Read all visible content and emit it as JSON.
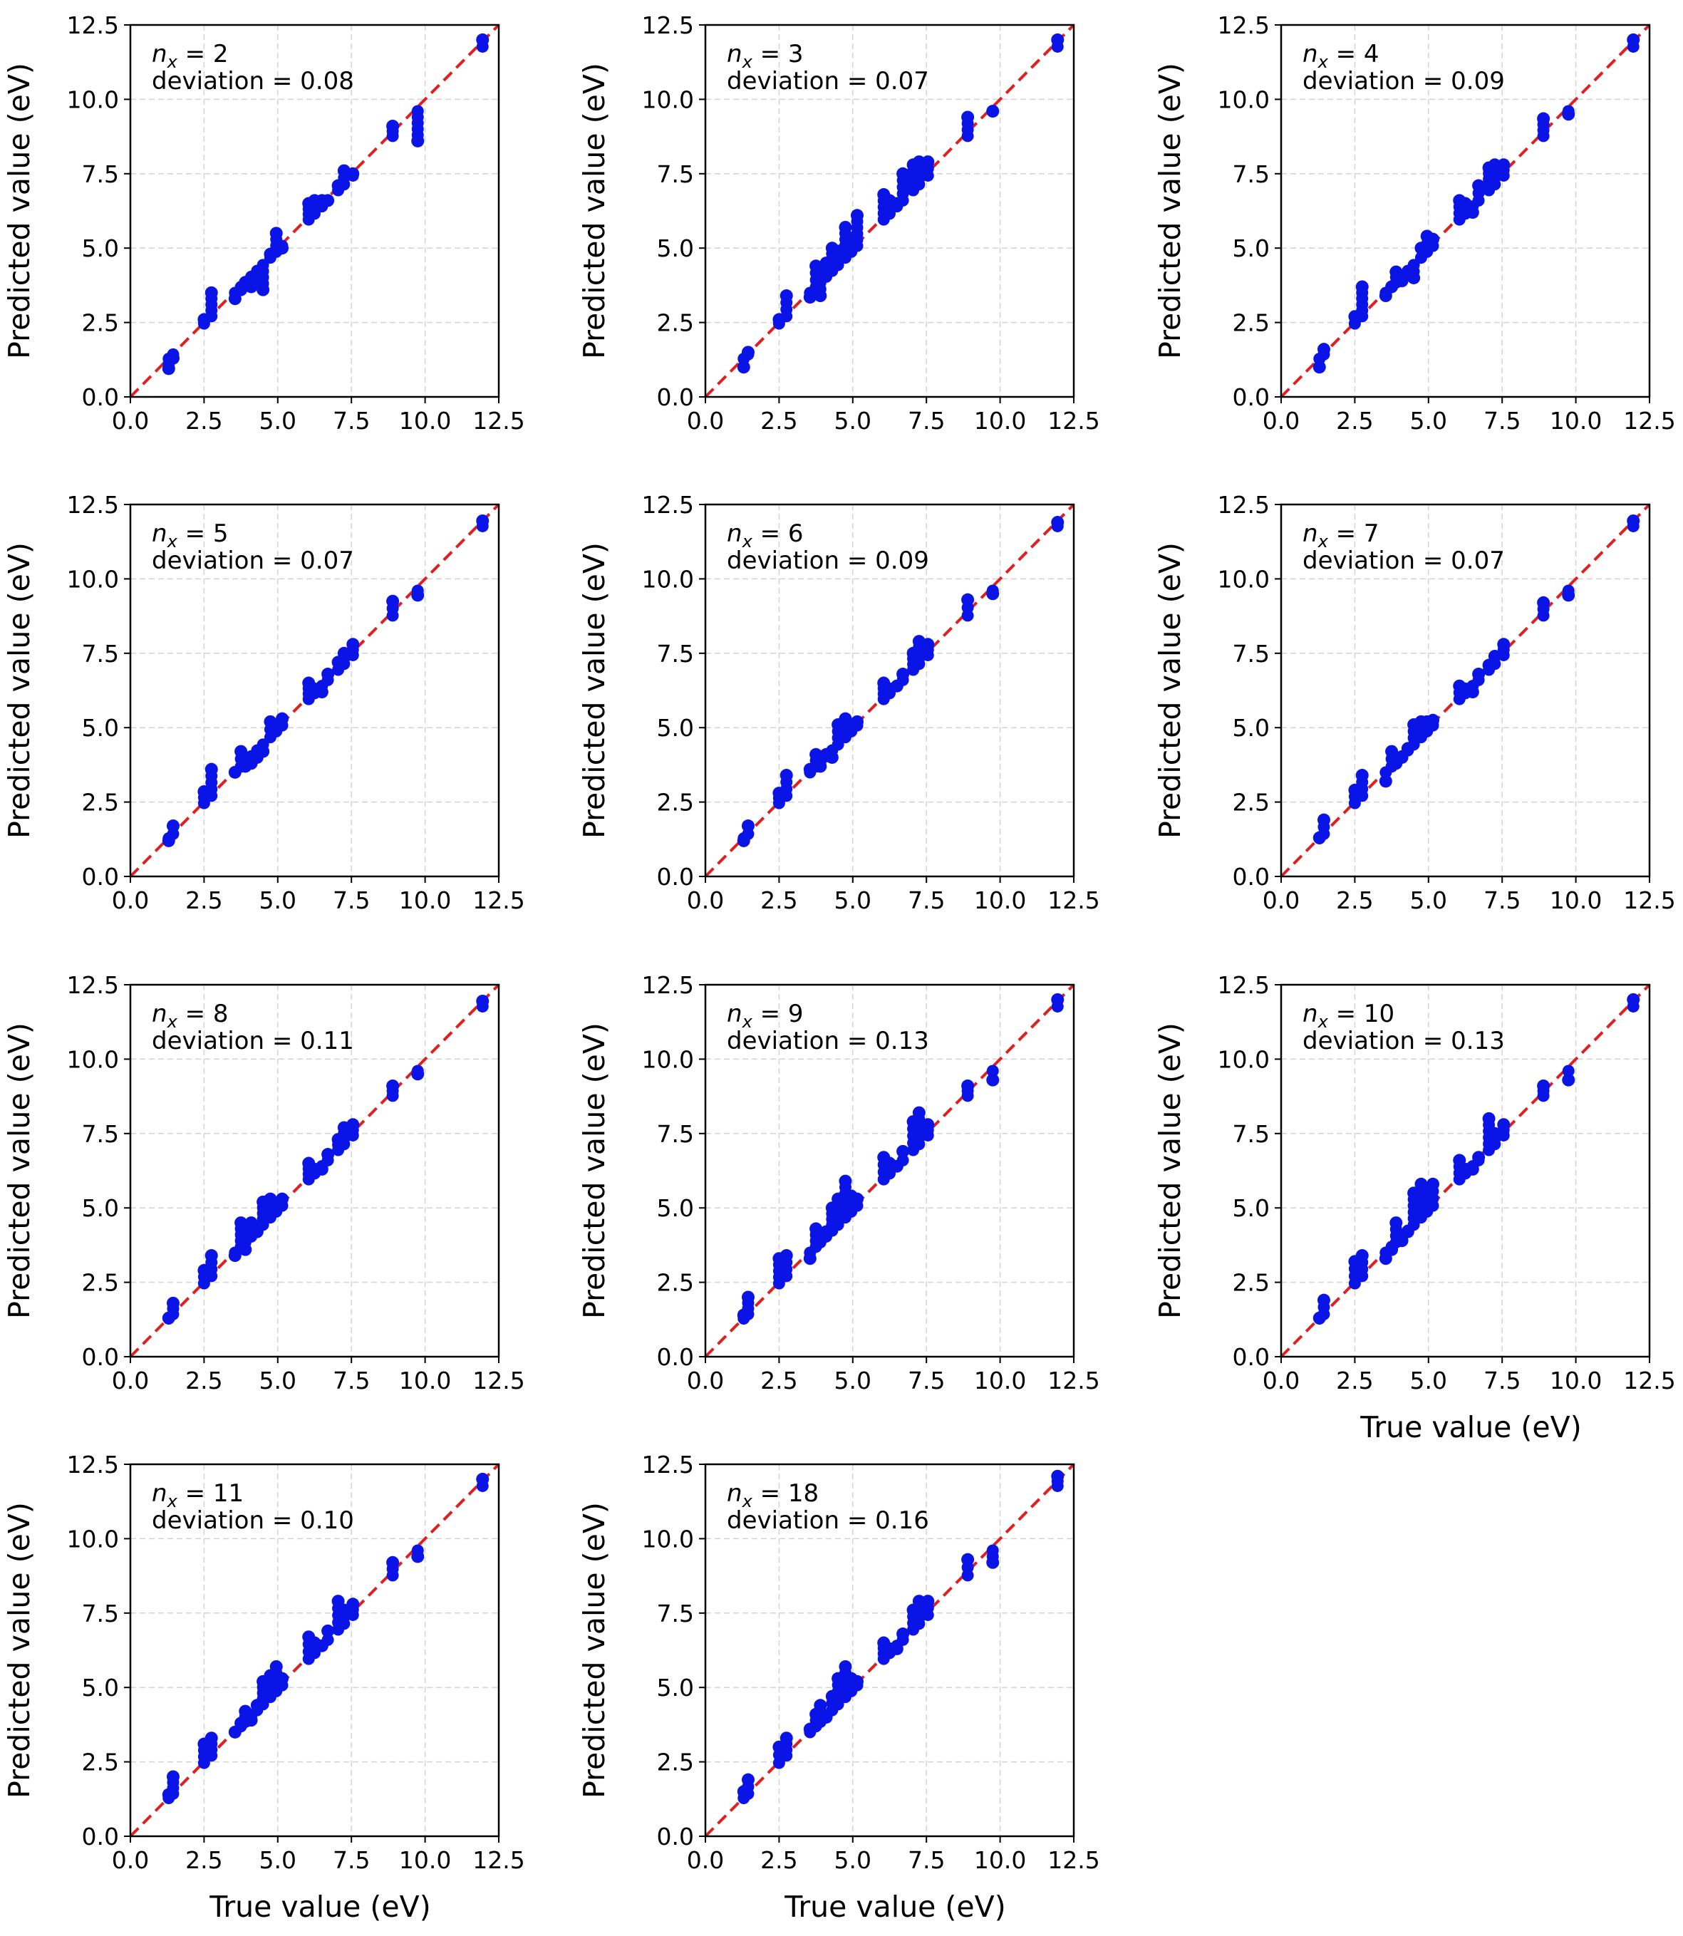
{
  "chart_data": {
    "type": "scatter",
    "layout": "grid-4x3",
    "axis": {
      "xlim": [
        0,
        12.5
      ],
      "ylim": [
        0,
        12.5
      ],
      "ticks": [
        0,
        2.5,
        5,
        7.5,
        10,
        12.5
      ],
      "tick_labels": [
        "0.0",
        "2.5",
        "5.0",
        "7.5",
        "10.0",
        "12.5"
      ],
      "xlabel": "True value (eV)",
      "ylabel": "Predicted value (eV)",
      "grid": true
    },
    "reference_line": {
      "style": "dashed",
      "color": "#e02020",
      "from": [
        0,
        0
      ],
      "to": [
        12.5,
        12.5
      ]
    },
    "marker_color": "#0a14e6",
    "true_values": [
      1.3,
      1.45,
      2.5,
      2.75,
      3.55,
      3.75,
      3.9,
      4.1,
      4.3,
      4.5,
      4.75,
      4.95,
      5.15,
      6.05,
      6.25,
      6.5,
      6.7,
      7.05,
      7.25,
      7.55,
      8.9,
      9.75,
      11.95
    ],
    "panels": [
      {
        "id": "nx2",
        "nx": "2",
        "deviation_text": "deviation = 0.08",
        "show_xlabel": false,
        "pred": [
          0.95,
          1.3,
          2.6,
          3.5,
          3.3,
          3.6,
          3.85,
          3.7,
          4.0,
          3.6,
          4.8,
          5.5,
          5.0,
          6.5,
          6.6,
          6.6,
          6.6,
          7.1,
          7.6,
          7.5,
          9.1,
          8.6,
          12.0
        ]
      },
      {
        "id": "nx3",
        "nx": "3",
        "deviation_text": "deviation = 0.07",
        "show_xlabel": false,
        "pred": [
          1.0,
          1.5,
          2.6,
          3.4,
          3.35,
          4.4,
          3.4,
          4.5,
          5.0,
          4.9,
          5.7,
          5.3,
          6.1,
          6.8,
          6.6,
          6.5,
          7.5,
          7.8,
          7.9,
          7.9,
          9.4,
          9.6,
          12.0
        ]
      },
      {
        "id": "nx4",
        "nx": "4",
        "deviation_text": "deviation = 0.09",
        "show_xlabel": false,
        "pred": [
          1.0,
          1.6,
          2.7,
          3.7,
          3.4,
          3.7,
          4.2,
          3.9,
          4.2,
          4.0,
          5.0,
          5.4,
          5.3,
          6.6,
          6.5,
          6.2,
          7.1,
          7.7,
          7.8,
          7.8,
          9.35,
          9.5,
          12.0
        ]
      },
      {
        "id": "nx5",
        "nx": "5",
        "deviation_text": "deviation = 0.07",
        "show_xlabel": false,
        "pred": [
          1.2,
          1.7,
          2.85,
          3.6,
          3.5,
          4.2,
          3.7,
          3.8,
          4.0,
          4.2,
          5.2,
          5.1,
          5.3,
          6.5,
          6.3,
          6.2,
          6.8,
          7.2,
          7.5,
          7.8,
          9.25,
          9.45,
          11.95
        ]
      },
      {
        "id": "nx6",
        "nx": "6",
        "deviation_text": "deviation = 0.09",
        "show_xlabel": false,
        "pred": [
          1.2,
          1.7,
          2.8,
          3.4,
          3.6,
          4.1,
          3.7,
          4.1,
          4.0,
          5.1,
          5.3,
          5.0,
          5.2,
          6.5,
          6.3,
          6.4,
          6.8,
          7.5,
          7.9,
          7.8,
          9.3,
          9.5,
          11.9
        ]
      },
      {
        "id": "nx7",
        "nx": "7",
        "deviation_text": "deviation = 0.07",
        "show_xlabel": false,
        "pred": [
          1.3,
          1.9,
          2.9,
          3.4,
          3.2,
          4.2,
          3.8,
          4.0,
          4.3,
          5.1,
          5.2,
          5.2,
          5.25,
          6.4,
          6.3,
          6.2,
          6.8,
          7.1,
          7.4,
          7.8,
          9.2,
          9.45,
          11.95
        ]
      },
      {
        "id": "nx8",
        "nx": "8",
        "deviation_text": "deviation = 0.11",
        "show_xlabel": false,
        "pred": [
          1.3,
          1.8,
          2.9,
          3.4,
          3.4,
          4.5,
          3.6,
          4.5,
          4.2,
          5.2,
          5.3,
          5.1,
          5.3,
          6.5,
          6.3,
          6.3,
          6.8,
          7.3,
          7.7,
          7.8,
          9.1,
          9.5,
          11.95
        ]
      },
      {
        "id": "nx9",
        "nx": "9",
        "deviation_text": "deviation = 0.13",
        "show_xlabel": false,
        "pred": [
          1.4,
          2.0,
          3.3,
          3.4,
          3.3,
          4.3,
          3.9,
          4.2,
          5.0,
          5.3,
          5.9,
          5.4,
          5.3,
          6.7,
          6.5,
          6.4,
          6.9,
          7.9,
          8.2,
          7.8,
          9.1,
          9.3,
          12.0
        ]
      },
      {
        "id": "nx10",
        "nx": "10",
        "deviation_text": "deviation = 0.13",
        "show_xlabel": true,
        "pred": [
          1.3,
          1.9,
          3.2,
          3.4,
          3.3,
          3.6,
          4.5,
          3.9,
          4.2,
          5.5,
          5.8,
          5.5,
          5.8,
          6.6,
          6.3,
          6.3,
          6.7,
          8.0,
          7.5,
          7.8,
          9.1,
          9.3,
          12.0
        ]
      },
      {
        "id": "nx11",
        "nx": "11",
        "deviation_text": "deviation = 0.10",
        "show_xlabel": true,
        "pred": [
          1.4,
          2.0,
          3.1,
          3.3,
          3.5,
          3.8,
          4.2,
          3.9,
          4.4,
          5.2,
          5.4,
          5.7,
          5.3,
          6.7,
          6.5,
          6.4,
          6.9,
          7.9,
          7.6,
          7.8,
          9.2,
          9.4,
          12.0
        ]
      },
      {
        "id": "nx18",
        "nx": "18",
        "deviation_text": "deviation = 0.16",
        "show_xlabel": true,
        "pred": [
          1.5,
          1.9,
          3.0,
          3.3,
          3.6,
          4.1,
          4.4,
          4.0,
          4.7,
          5.3,
          5.7,
          5.3,
          5.2,
          6.5,
          6.3,
          6.3,
          6.8,
          7.6,
          7.9,
          7.9,
          9.3,
          9.2,
          12.1
        ]
      }
    ]
  }
}
